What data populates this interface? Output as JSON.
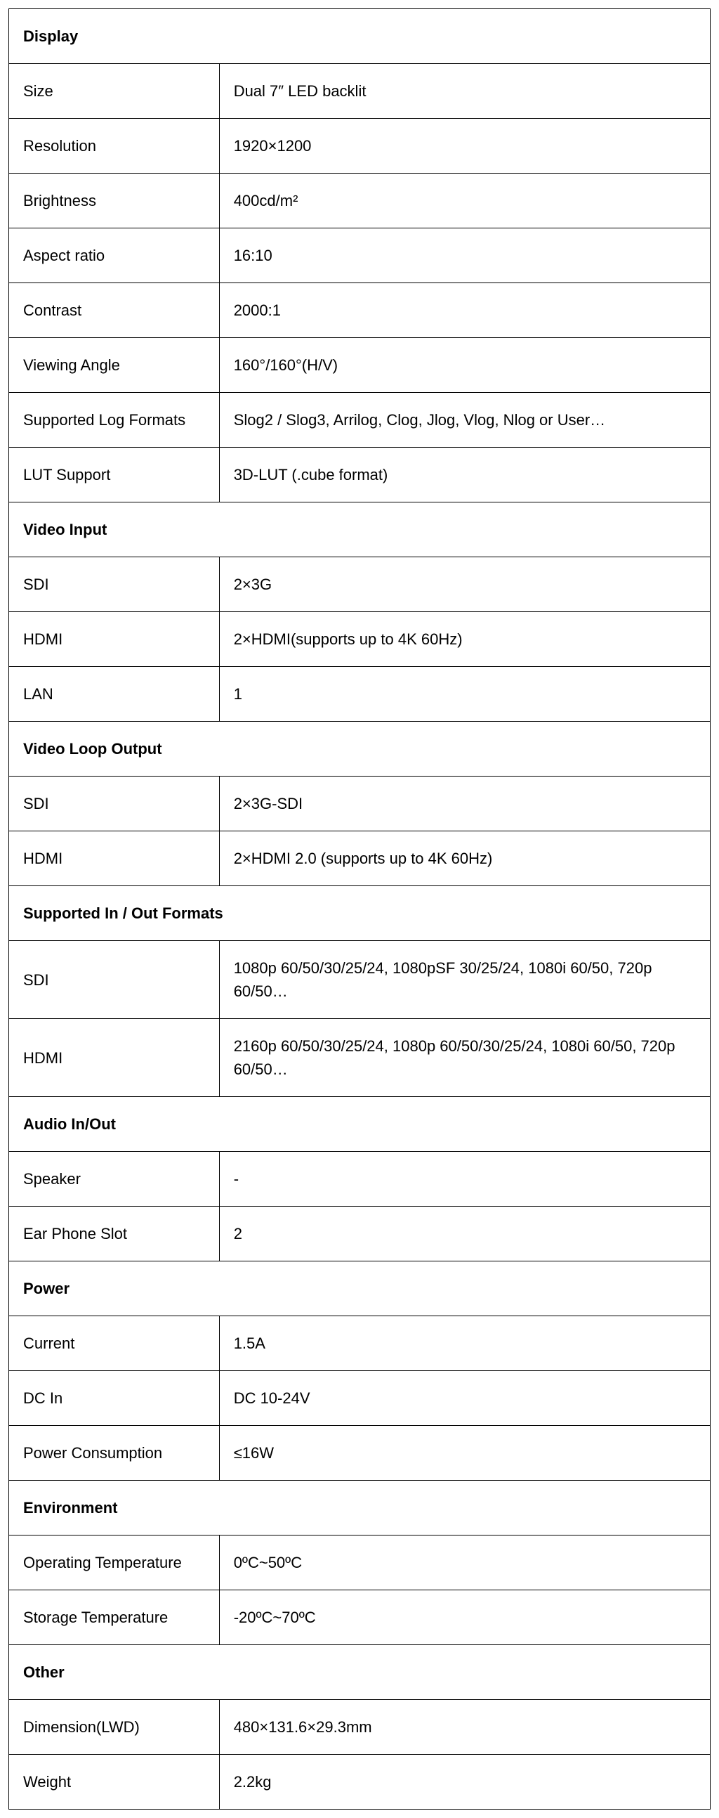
{
  "type": "table",
  "border_color": "#000000",
  "background_color": "#ffffff",
  "text_color": "#000000",
  "font_size": 22,
  "label_col_width": "30%",
  "value_col_width": "70%",
  "sections": [
    {
      "title": "Display",
      "rows": [
        {
          "label": "Size",
          "value": "Dual 7″ LED backlit"
        },
        {
          "label": "Resolution",
          "value": "1920×1200"
        },
        {
          "label": "Brightness",
          "value": "400cd/m²"
        },
        {
          "label": "Aspect ratio",
          "value": "16:10"
        },
        {
          "label": "Contrast",
          "value": "2000:1"
        },
        {
          "label": "Viewing Angle",
          "value": "160°/160°(H/V)"
        },
        {
          "label": "Supported Log Formats",
          "value": "Slog2 / Slog3, Arrilog, Clog, Jlog, Vlog, Nlog or User…"
        },
        {
          "label": "LUT Support",
          "value": "3D-LUT (.cube format)"
        }
      ]
    },
    {
      "title": "Video Input",
      "rows": [
        {
          "label": "SDI",
          "value": "2×3G"
        },
        {
          "label": "HDMI",
          "value": "2×HDMI(supports up to 4K 60Hz)"
        },
        {
          "label": "LAN",
          "value": "1"
        }
      ]
    },
    {
      "title": "Video Loop Output",
      "rows": [
        {
          "label": "SDI",
          "value": "2×3G-SDI"
        },
        {
          "label": "HDMI",
          "value": "2×HDMI 2.0 (supports up to 4K 60Hz)"
        }
      ]
    },
    {
      "title": "Supported In / Out Formats",
      "rows": [
        {
          "label": "SDI",
          "value": "1080p 60/50/30/25/24, 1080pSF 30/25/24, 1080i 60/50, 720p 60/50…"
        },
        {
          "label": "HDMI",
          "value": "2160p 60/50/30/25/24, 1080p 60/50/30/25/24, 1080i 60/50, 720p 60/50…"
        }
      ]
    },
    {
      "title": "Audio In/Out",
      "rows": [
        {
          "label": "Speaker",
          "value": "-"
        },
        {
          "label": "Ear Phone Slot",
          "value": "2"
        }
      ]
    },
    {
      "title": "Power",
      "rows": [
        {
          "label": "Current",
          "value": "1.5A"
        },
        {
          "label": "DC In",
          "value": "DC 10-24V"
        },
        {
          "label": "Power Consumption",
          "value": "≤16W"
        }
      ]
    },
    {
      "title": "Environment",
      "rows": [
        {
          "label": "Operating Temperature",
          "value": "0ºC~50ºC"
        },
        {
          "label": "Storage Temperature",
          "value": "-20ºC~70ºC"
        }
      ]
    },
    {
      "title": "Other",
      "rows": [
        {
          "label": "Dimension(LWD)",
          "value": "480×131.6×29.3mm"
        },
        {
          "label": "Weight",
          "value": "2.2kg"
        }
      ]
    }
  ]
}
